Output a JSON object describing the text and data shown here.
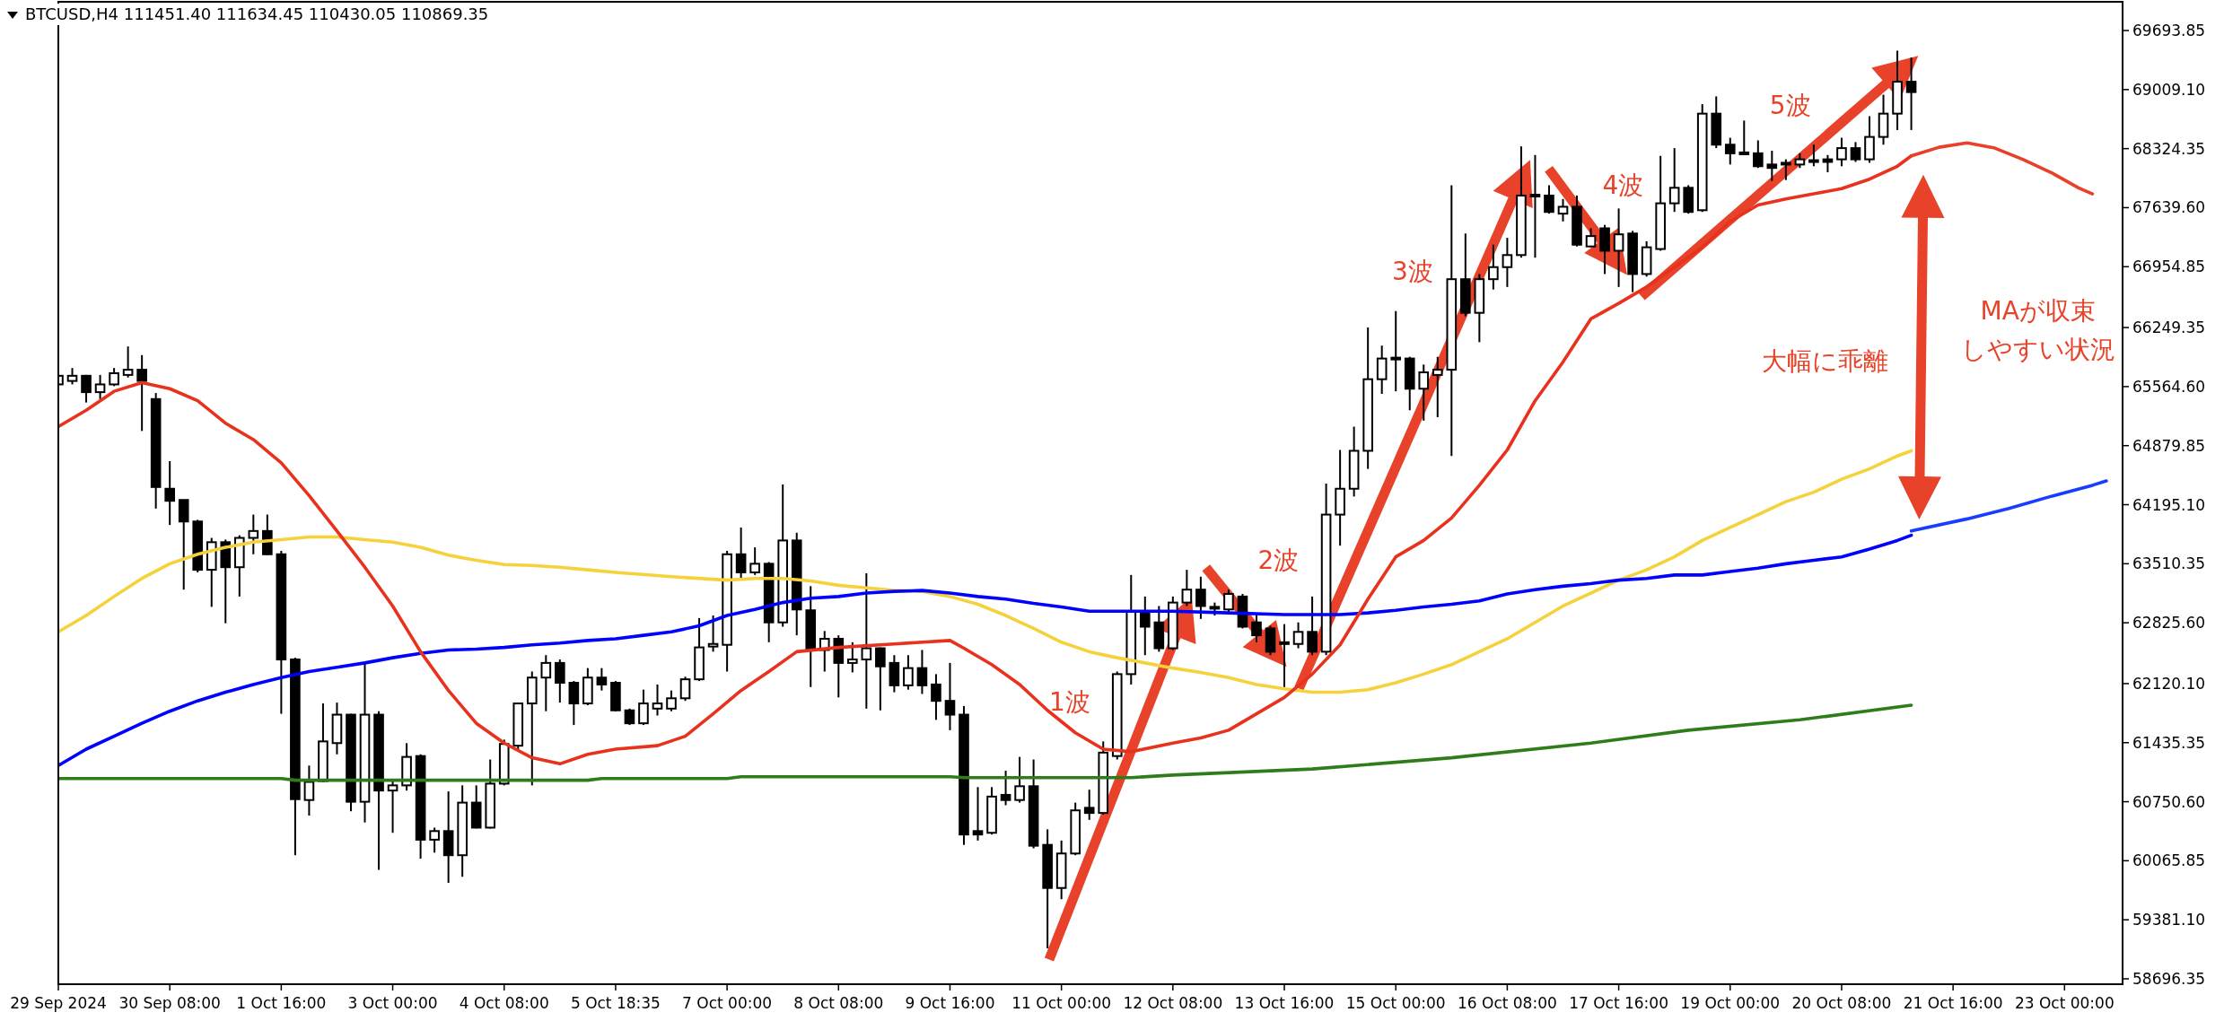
{
  "chart_data": {
    "type": "candlestick",
    "title": "BTCUSD,H4  111451.40 111634.45 110430.05 110869.35",
    "x": [
      "2024-09-29T00:00",
      "2024-09-29T04:00",
      "2024-09-29T08:00",
      "2024-09-29T12:00",
      "2024-09-29T16:00",
      "2024-09-29T20:00",
      "2024-09-30T00:00",
      "2024-09-30T04:00",
      "2024-09-30T08:00",
      "2024-09-30T12:00",
      "2024-09-30T16:00",
      "2024-09-30T20:00",
      "2024-10-01T00:00",
      "2024-10-01T04:00",
      "2024-10-01T08:00",
      "2024-10-01T12:00",
      "2024-10-01T16:00",
      "2024-10-01T20:00",
      "2024-10-02T00:00",
      "2024-10-02T04:00",
      "2024-10-02T08:00",
      "2024-10-02T12:00",
      "2024-10-02T16:00",
      "2024-10-02T20:00",
      "2024-10-03T00:00",
      "2024-10-03T04:00",
      "2024-10-03T08:00",
      "2024-10-03T12:00",
      "2024-10-03T16:00",
      "2024-10-03T20:00",
      "2024-10-04T00:00",
      "2024-10-04T04:00",
      "2024-10-04T08:00",
      "2024-10-04T12:00",
      "2024-10-04T16:00",
      "2024-10-04T20:00",
      "2024-10-05T00:00",
      "2024-10-05T04:00",
      "2024-10-05T08:00",
      "2024-10-05T12:00",
      "2024-10-05T16:00",
      "2024-10-05T20:00",
      "2024-10-06T00:00",
      "2024-10-06T04:00",
      "2024-10-06T08:00",
      "2024-10-06T12:00",
      "2024-10-06T16:00",
      "2024-10-06T20:00",
      "2024-10-07T00:00",
      "2024-10-07T04:00",
      "2024-10-07T08:00",
      "2024-10-07T12:00",
      "2024-10-07T16:00",
      "2024-10-07T20:00",
      "2024-10-08T00:00",
      "2024-10-08T04:00",
      "2024-10-08T08:00",
      "2024-10-08T12:00",
      "2024-10-08T16:00",
      "2024-10-08T20:00",
      "2024-10-09T00:00",
      "2024-10-09T04:00",
      "2024-10-09T08:00",
      "2024-10-09T12:00",
      "2024-10-09T16:00",
      "2024-10-09T20:00",
      "2024-10-10T00:00",
      "2024-10-10T04:00",
      "2024-10-10T08:00",
      "2024-10-10T12:00",
      "2024-10-10T16:00",
      "2024-10-10T20:00",
      "2024-10-11T00:00",
      "2024-10-11T04:00",
      "2024-10-11T08:00",
      "2024-10-11T12:00",
      "2024-10-11T16:00",
      "2024-10-11T20:00",
      "2024-10-12T00:00",
      "2024-10-12T04:00",
      "2024-10-12T08:00",
      "2024-10-12T12:00",
      "2024-10-12T16:00",
      "2024-10-12T20:00",
      "2024-10-13T00:00",
      "2024-10-13T04:00",
      "2024-10-13T08:00",
      "2024-10-13T12:00",
      "2024-10-13T16:00",
      "2024-10-13T20:00",
      "2024-10-14T00:00",
      "2024-10-14T04:00",
      "2024-10-14T08:00",
      "2024-10-14T12:00",
      "2024-10-14T16:00",
      "2024-10-14T20:00",
      "2024-10-15T00:00",
      "2024-10-15T04:00",
      "2024-10-15T08:00",
      "2024-10-15T12:00",
      "2024-10-15T16:00",
      "2024-10-15T20:00",
      "2024-10-16T00:00",
      "2024-10-16T04:00",
      "2024-10-16T08:00",
      "2024-10-16T12:00",
      "2024-10-16T16:00",
      "2024-10-16T20:00",
      "2024-10-17T00:00",
      "2024-10-17T04:00",
      "2024-10-17T08:00",
      "2024-10-17T12:00",
      "2024-10-17T16:00",
      "2024-10-17T20:00",
      "2024-10-18T00:00",
      "2024-10-18T04:00",
      "2024-10-18T08:00",
      "2024-10-18T12:00",
      "2024-10-18T16:00",
      "2024-10-18T20:00",
      "2024-10-19T00:00",
      "2024-10-19T04:00",
      "2024-10-19T08:00",
      "2024-10-19T12:00",
      "2024-10-19T16:00",
      "2024-10-19T20:00",
      "2024-10-20T00:00",
      "2024-10-20T04:00",
      "2024-10-20T08:00",
      "2024-10-20T12:00",
      "2024-10-20T16:00",
      "2024-10-20T20:00",
      "2024-10-21T00:00",
      "2024-10-21T04:00"
    ],
    "ohlc": [
      [
        65590,
        65930,
        65510,
        65690
      ],
      [
        65630,
        65780,
        65590,
        65690
      ],
      [
        65690,
        65700,
        65380,
        65500
      ],
      [
        65500,
        65700,
        65420,
        65590
      ],
      [
        65590,
        65780,
        65570,
        65720
      ],
      [
        65700,
        66030,
        65670,
        65760
      ],
      [
        65760,
        65930,
        65050,
        65630
      ],
      [
        65420,
        65490,
        64150,
        64400
      ],
      [
        64380,
        64700,
        63960,
        64240
      ],
      [
        64250,
        64250,
        63210,
        64000
      ],
      [
        64000,
        64020,
        63410,
        63440
      ],
      [
        63440,
        63810,
        63010,
        63760
      ],
      [
        63760,
        63790,
        62820,
        63470
      ],
      [
        63470,
        63840,
        63130,
        63810
      ],
      [
        63810,
        64080,
        63620,
        63890
      ],
      [
        63890,
        64080,
        63610,
        63620
      ],
      [
        63620,
        63660,
        61770,
        62400
      ],
      [
        62400,
        62420,
        60130,
        60780
      ],
      [
        60770,
        61170,
        60590,
        60980
      ],
      [
        60990,
        61890,
        60980,
        61450
      ],
      [
        61430,
        61900,
        61300,
        61760
      ],
      [
        61760,
        61770,
        60640,
        60750
      ],
      [
        60750,
        62360,
        60510,
        61760
      ],
      [
        61760,
        61800,
        59960,
        60880
      ],
      [
        60880,
        60990,
        60390,
        60940
      ],
      [
        60940,
        61430,
        60880,
        61270
      ],
      [
        61280,
        61300,
        60090,
        60310
      ],
      [
        60310,
        60450,
        60160,
        60410
      ],
      [
        60410,
        60870,
        59810,
        60130
      ],
      [
        60130,
        60940,
        59880,
        60740
      ],
      [
        60740,
        60940,
        60440,
        60450
      ],
      [
        60450,
        61240,
        60440,
        60960
      ],
      [
        60960,
        61470,
        60940,
        61420
      ],
      [
        61400,
        61900,
        61360,
        61890
      ],
      [
        61890,
        62260,
        60940,
        62190
      ],
      [
        62190,
        62450,
        61800,
        62360
      ],
      [
        62360,
        62400,
        61900,
        62130
      ],
      [
        62130,
        62150,
        61640,
        61890
      ],
      [
        61890,
        62300,
        61870,
        62190
      ],
      [
        62190,
        62300,
        62040,
        62110
      ],
      [
        62130,
        62150,
        61800,
        61810
      ],
      [
        61810,
        61830,
        61640,
        61660
      ],
      [
        61660,
        62050,
        61640,
        61890
      ],
      [
        61830,
        62110,
        61750,
        61890
      ],
      [
        61830,
        62040,
        61800,
        61950
      ],
      [
        61950,
        62200,
        61920,
        62170
      ],
      [
        62170,
        62880,
        62150,
        62540
      ],
      [
        62550,
        62910,
        62490,
        62580
      ],
      [
        62570,
        63660,
        62260,
        63620
      ],
      [
        63620,
        63930,
        63320,
        63410
      ],
      [
        63410,
        63700,
        63380,
        63510
      ],
      [
        63510,
        63530,
        62600,
        62830
      ],
      [
        62830,
        64430,
        62780,
        63780
      ],
      [
        63780,
        63870,
        62680,
        62980
      ],
      [
        62970,
        63250,
        62080,
        62510
      ],
      [
        62510,
        62730,
        62260,
        62640
      ],
      [
        62640,
        62680,
        61960,
        62360
      ],
      [
        62360,
        62600,
        62250,
        62400
      ],
      [
        62400,
        63400,
        61830,
        62530
      ],
      [
        62530,
        62540,
        61810,
        62320
      ],
      [
        62360,
        62450,
        62020,
        62100
      ],
      [
        62100,
        62450,
        62050,
        62300
      ],
      [
        62300,
        62510,
        62000,
        62100
      ],
      [
        62110,
        62230,
        61700,
        61920
      ],
      [
        61920,
        62360,
        61580,
        61760
      ],
      [
        61760,
        61860,
        60250,
        60370
      ],
      [
        60410,
        60920,
        60300,
        60370
      ],
      [
        60390,
        60920,
        60370,
        60810
      ],
      [
        60830,
        61110,
        60710,
        60770
      ],
      [
        60770,
        61270,
        60740,
        60930
      ],
      [
        60930,
        61240,
        60210,
        60240
      ],
      [
        60250,
        60430,
        59050,
        59750
      ],
      [
        59750,
        60300,
        59620,
        60150
      ],
      [
        60150,
        60740,
        60130,
        60650
      ],
      [
        60680,
        60890,
        60540,
        60620
      ],
      [
        60620,
        61450,
        60600,
        61320
      ],
      [
        61280,
        62260,
        61240,
        62230
      ],
      [
        62230,
        63380,
        62110,
        62960
      ],
      [
        62940,
        63130,
        62450,
        62780
      ],
      [
        62830,
        63020,
        62490,
        62530
      ],
      [
        62530,
        63130,
        62510,
        63060
      ],
      [
        63060,
        63440,
        63020,
        63210
      ],
      [
        63210,
        63360,
        62870,
        63020
      ],
      [
        62990,
        63060,
        62910,
        63010
      ],
      [
        62980,
        63210,
        62940,
        63160
      ],
      [
        63130,
        63160,
        62760,
        62780
      ],
      [
        62830,
        62940,
        62600,
        62680
      ],
      [
        62760,
        62790,
        62450,
        62490
      ],
      [
        62600,
        62810,
        62080,
        62580
      ],
      [
        62580,
        62830,
        62530,
        62720
      ],
      [
        62720,
        63130,
        62450,
        62490
      ],
      [
        62490,
        64440,
        62450,
        64080
      ],
      [
        64080,
        64830,
        63720,
        64380
      ],
      [
        64380,
        65100,
        64290,
        64820
      ],
      [
        64820,
        66250,
        64610,
        65650
      ],
      [
        65650,
        66040,
        65480,
        65890
      ],
      [
        65880,
        66440,
        65510,
        65900
      ],
      [
        65890,
        65910,
        65290,
        65540
      ],
      [
        65540,
        65820,
        65170,
        65730
      ],
      [
        65700,
        65910,
        65210,
        65760
      ],
      [
        65760,
        67900,
        64760,
        66810
      ],
      [
        66810,
        67340,
        66380,
        66420
      ],
      [
        66420,
        66870,
        66080,
        66810
      ],
      [
        66810,
        67210,
        66690,
        66950
      ],
      [
        66950,
        67290,
        66720,
        67090
      ],
      [
        67090,
        68350,
        67060,
        67780
      ],
      [
        67770,
        68250,
        67060,
        67790
      ],
      [
        67780,
        67900,
        67570,
        67590
      ],
      [
        67570,
        67740,
        67480,
        67650
      ],
      [
        67650,
        67780,
        67190,
        67210
      ],
      [
        67190,
        67400,
        67180,
        67310
      ],
      [
        67400,
        67440,
        66870,
        67140
      ],
      [
        67140,
        67630,
        66720,
        67330
      ],
      [
        67340,
        67370,
        66660,
        66870
      ],
      [
        66870,
        67250,
        66840,
        67180
      ],
      [
        67160,
        68240,
        67140,
        67690
      ],
      [
        67690,
        68330,
        67590,
        67870
      ],
      [
        67870,
        67900,
        67570,
        67590
      ],
      [
        67610,
        68840,
        67590,
        68730
      ],
      [
        68730,
        68930,
        68330,
        68370
      ],
      [
        68370,
        68450,
        68140,
        68270
      ],
      [
        68270,
        68650,
        68260,
        68280
      ],
      [
        68270,
        68420,
        68100,
        68120
      ],
      [
        68140,
        68300,
        67950,
        68100
      ],
      [
        68140,
        68200,
        67960,
        68160
      ],
      [
        68140,
        68270,
        68100,
        68200
      ],
      [
        68170,
        68370,
        68120,
        68190
      ],
      [
        68200,
        68250,
        68050,
        68170
      ],
      [
        68200,
        68450,
        68120,
        68330
      ],
      [
        68330,
        68400,
        68170,
        68200
      ],
      [
        68200,
        68700,
        68160,
        68460
      ],
      [
        68460,
        68950,
        68370,
        68730
      ],
      [
        68730,
        69460,
        68540,
        69100
      ],
      [
        69100,
        69380,
        68540,
        68980
      ]
    ],
    "series": [
      {
        "type": "line",
        "color": "#2e7d1a",
        "x": [
          "2024-09-29T00:00",
          "2024-10-01T16:00",
          "2024-10-01T20:00",
          "2024-10-05T08:00",
          "2024-10-05T12:00",
          "2024-10-07T00:00",
          "2024-10-07T04:00",
          "2024-10-09T16:00",
          "2024-10-09T20:00",
          "2024-10-11T20:00",
          "2024-10-12T08:00",
          "2024-10-14T00:00",
          "2024-10-15T16:00",
          "2024-10-17T08:00",
          "2024-10-18T12:00",
          "2024-10-19T20:00",
          "2024-10-21T04:00"
        ],
        "values": [
          61020,
          61020,
          61000,
          61000,
          61020,
          61020,
          61040,
          61040,
          61030,
          61030,
          61060,
          61130,
          61260,
          61430,
          61580,
          61700,
          61870
        ]
      },
      {
        "type": "line",
        "color": "#f5d23c",
        "x": [
          "2024-09-29T00:00",
          "2024-09-29T08:00",
          "2024-09-29T16:00",
          "2024-09-30T00:00",
          "2024-09-30T08:00",
          "2024-09-30T16:00",
          "2024-10-01T00:00",
          "2024-10-01T08:00",
          "2024-10-01T16:00",
          "2024-10-02T00:00",
          "2024-10-02T08:00",
          "2024-10-02T16:00",
          "2024-10-03T00:00",
          "2024-10-03T08:00",
          "2024-10-03T16:00",
          "2024-10-04T00:00",
          "2024-10-04T08:00",
          "2024-10-04T16:00",
          "2024-10-05T00:00",
          "2024-10-05T08:00",
          "2024-10-05T16:00",
          "2024-10-06T08:00",
          "2024-10-07T00:00",
          "2024-10-07T08:00",
          "2024-10-07T16:00",
          "2024-10-08T00:00",
          "2024-10-08T08:00",
          "2024-10-08T16:00",
          "2024-10-09T00:00",
          "2024-10-09T08:00",
          "2024-10-09T16:00",
          "2024-10-10T00:00",
          "2024-10-10T08:00",
          "2024-10-10T16:00",
          "2024-10-11T00:00",
          "2024-10-11T08:00",
          "2024-10-11T16:00",
          "2024-10-12T00:00",
          "2024-10-12T08:00",
          "2024-10-12T16:00",
          "2024-10-13T00:00",
          "2024-10-13T08:00",
          "2024-10-13T16:00",
          "2024-10-14T00:00",
          "2024-10-14T08:00",
          "2024-10-14T16:00",
          "2024-10-15T00:00",
          "2024-10-15T08:00",
          "2024-10-15T16:00",
          "2024-10-16T00:00",
          "2024-10-16T08:00",
          "2024-10-16T16:00",
          "2024-10-17T00:00",
          "2024-10-17T08:00",
          "2024-10-17T16:00",
          "2024-10-18T00:00",
          "2024-10-18T08:00",
          "2024-10-18T16:00",
          "2024-10-19T00:00",
          "2024-10-19T08:00",
          "2024-10-19T16:00",
          "2024-10-20T00:00",
          "2024-10-20T08:00",
          "2024-10-20T16:00",
          "2024-10-21T00:00",
          "2024-10-21T04:00"
        ],
        "values": [
          62720,
          62910,
          63130,
          63340,
          63510,
          63620,
          63700,
          63760,
          63790,
          63820,
          63820,
          63790,
          63760,
          63700,
          63610,
          63550,
          63500,
          63490,
          63470,
          63440,
          63410,
          63360,
          63320,
          63340,
          63340,
          63310,
          63260,
          63230,
          63200,
          63190,
          63130,
          63040,
          62910,
          62760,
          62600,
          62490,
          62420,
          62360,
          62300,
          62250,
          62190,
          62110,
          62060,
          62020,
          62020,
          62050,
          62130,
          62230,
          62340,
          62490,
          62640,
          62830,
          63020,
          63170,
          63320,
          63440,
          63590,
          63780,
          63930,
          64080,
          64230,
          64340,
          64490,
          64610,
          64760,
          64820
        ]
      },
      {
        "type": "line",
        "color": "#0000ff",
        "x": [
          "2024-09-29T00:00",
          "2024-09-29T08:00",
          "2024-09-29T16:00",
          "2024-09-30T00:00",
          "2024-09-30T08:00",
          "2024-09-30T16:00",
          "2024-10-01T00:00",
          "2024-10-01T08:00",
          "2024-10-01T16:00",
          "2024-10-02T00:00",
          "2024-10-02T08:00",
          "2024-10-02T16:00",
          "2024-10-03T00:00",
          "2024-10-03T08:00",
          "2024-10-03T16:00",
          "2024-10-04T00:00",
          "2024-10-04T08:00",
          "2024-10-04T16:00",
          "2024-10-05T00:00",
          "2024-10-05T08:00",
          "2024-10-05T16:00",
          "2024-10-06T00:00",
          "2024-10-06T08:00",
          "2024-10-06T16:00",
          "2024-10-07T00:00",
          "2024-10-07T08:00",
          "2024-10-07T16:00",
          "2024-10-08T00:00",
          "2024-10-08T08:00",
          "2024-10-08T16:00",
          "2024-10-09T00:00",
          "2024-10-09T08:00",
          "2024-10-09T16:00",
          "2024-10-10T00:00",
          "2024-10-10T08:00",
          "2024-10-10T16:00",
          "2024-10-11T00:00",
          "2024-10-11T08:00",
          "2024-10-11T16:00",
          "2024-10-12T08:00",
          "2024-10-13T00:00",
          "2024-10-13T16:00",
          "2024-10-14T00:00",
          "2024-10-14T08:00",
          "2024-10-14T16:00",
          "2024-10-15T00:00",
          "2024-10-15T08:00",
          "2024-10-15T16:00",
          "2024-10-16T00:00",
          "2024-10-16T08:00",
          "2024-10-16T16:00",
          "2024-10-17T00:00",
          "2024-10-17T08:00",
          "2024-10-17T16:00",
          "2024-10-18T00:00",
          "2024-10-18T08:00",
          "2024-10-18T16:00",
          "2024-10-19T00:00",
          "2024-10-19T08:00",
          "2024-10-19T16:00",
          "2024-10-20T00:00",
          "2024-10-20T08:00",
          "2024-10-20T16:00",
          "2024-10-21T00:00",
          "2024-10-21T04:00"
        ],
        "values": [
          61170,
          61360,
          61510,
          61660,
          61800,
          61920,
          62020,
          62110,
          62190,
          62260,
          62310,
          62360,
          62420,
          62470,
          62510,
          62520,
          62540,
          62570,
          62590,
          62620,
          62640,
          62680,
          62720,
          62790,
          62910,
          62980,
          63060,
          63110,
          63130,
          63170,
          63190,
          63200,
          63170,
          63130,
          63100,
          63050,
          63010,
          62960,
          62960,
          62960,
          62940,
          62920,
          62920,
          62920,
          62940,
          62970,
          63010,
          63040,
          63080,
          63160,
          63210,
          63250,
          63280,
          63320,
          63340,
          63380,
          63380,
          63420,
          63460,
          63510,
          63550,
          63590,
          63680,
          63780,
          63840
        ]
      },
      {
        "type": "line",
        "color": "#1a3cff",
        "x": [
          "2024-10-21T04:00",
          "2024-10-21T20:00",
          "2024-10-22T08:00",
          "2024-10-22T20:00",
          "2024-10-23T08:00",
          "2024-10-23T12:00"
        ],
        "values": [
          63890,
          64030,
          64150,
          64290,
          64420,
          64470
        ]
      },
      {
        "type": "line",
        "color": "#e8321e",
        "x": [
          "2024-09-29T00:00",
          "2024-09-29T08:00",
          "2024-09-29T16:00",
          "2024-09-30T00:00",
          "2024-09-30T08:00",
          "2024-09-30T16:00",
          "2024-10-01T00:00",
          "2024-10-01T08:00",
          "2024-10-01T16:00",
          "2024-10-02T00:00",
          "2024-10-02T08:00",
          "2024-10-02T16:00",
          "2024-10-03T00:00",
          "2024-10-03T08:00",
          "2024-10-03T16:00",
          "2024-10-04T00:00",
          "2024-10-04T08:00",
          "2024-10-04T16:00",
          "2024-10-05T00:00",
          "2024-10-05T08:00",
          "2024-10-05T16:00",
          "2024-10-06T04:00",
          "2024-10-06T12:00",
          "2024-10-06T20:00",
          "2024-10-07T04:00",
          "2024-10-07T12:00",
          "2024-10-07T20:00",
          "2024-10-08T08:00",
          "2024-10-09T00:00",
          "2024-10-09T16:00",
          "2024-10-09T20:00",
          "2024-10-10T04:00",
          "2024-10-10T12:00",
          "2024-10-10T20:00",
          "2024-10-11T04:00",
          "2024-10-11T12:00",
          "2024-10-11T20:00",
          "2024-10-12T08:00",
          "2024-10-12T16:00",
          "2024-10-13T00:00",
          "2024-10-13T08:00",
          "2024-10-13T16:00",
          "2024-10-14T00:00",
          "2024-10-14T08:00",
          "2024-10-14T16:00",
          "2024-10-15T00:00",
          "2024-10-15T08:00",
          "2024-10-15T16:00",
          "2024-10-16T00:00",
          "2024-10-16T08:00",
          "2024-10-16T16:00",
          "2024-10-17T00:00",
          "2024-10-17T08:00",
          "2024-10-17T16:00",
          "2024-10-18T00:00",
          "2024-10-18T08:00",
          "2024-10-18T16:00",
          "2024-10-19T00:00",
          "2024-10-19T08:00",
          "2024-10-19T16:00",
          "2024-10-20T00:00",
          "2024-10-20T08:00",
          "2024-10-20T16:00",
          "2024-10-21T00:00",
          "2024-10-21T04:00"
        ],
        "values": [
          65100,
          65290,
          65510,
          65610,
          65540,
          65400,
          65140,
          64950,
          64680,
          64300,
          63890,
          63470,
          63020,
          62490,
          62040,
          61660,
          61430,
          61260,
          61190,
          61300,
          61360,
          61400,
          61510,
          61770,
          62040,
          62260,
          62490,
          62540,
          62580,
          62620,
          62530,
          62340,
          62110,
          61810,
          61550,
          61360,
          61330,
          61430,
          61490,
          61580,
          61770,
          61960,
          62230,
          62570,
          63100,
          63590,
          63780,
          64040,
          64420,
          64830,
          65400,
          65850,
          66350,
          66530,
          66720,
          66950,
          67180,
          67480,
          67670,
          67740,
          67800,
          67860,
          67970,
          68120,
          68240
        ]
      },
      {
        "type": "line",
        "color": "#e8402a",
        "x": [
          "2024-10-21T04:00",
          "2024-10-21T12:00",
          "2024-10-21T20:00",
          "2024-10-22T04:00",
          "2024-10-22T12:00",
          "2024-10-22T20:00",
          "2024-10-23T04:00",
          "2024-10-23T08:00"
        ],
        "values": [
          68240,
          68340,
          68390,
          68330,
          68200,
          68050,
          67870,
          67800
        ]
      }
    ],
    "xlim": [
      "2024-09-29T00:00",
      "2024-10-23T16:40"
    ],
    "ylim": [
      58634,
      70027
    ],
    "xticks": [
      {
        "value": "2024-09-29T00:00",
        "label": "29 Sep 2024"
      },
      {
        "value": "2024-09-30T08:00",
        "label": "30 Sep 08:00"
      },
      {
        "value": "2024-10-01T16:00",
        "label": "1 Oct 16:00"
      },
      {
        "value": "2024-10-03T00:00",
        "label": "3 Oct 00:00"
      },
      {
        "value": "2024-10-04T08:00",
        "label": "4 Oct 08:00"
      },
      {
        "value": "2024-10-05T16:00",
        "label": "5 Oct 18:35"
      },
      {
        "value": "2024-10-07T00:00",
        "label": "7 Oct 00:00"
      },
      {
        "value": "2024-10-08T08:00",
        "label": "8 Oct 08:00"
      },
      {
        "value": "2024-10-09T16:00",
        "label": "9 Oct 16:00"
      },
      {
        "value": "2024-10-11T00:00",
        "label": "11 Oct 00:00"
      },
      {
        "value": "2024-10-12T08:00",
        "label": "12 Oct 08:00"
      },
      {
        "value": "2024-10-13T16:00",
        "label": "13 Oct 16:00"
      },
      {
        "value": "2024-10-15T00:00",
        "label": "15 Oct 00:00"
      },
      {
        "value": "2024-10-16T08:00",
        "label": "16 Oct 08:00"
      },
      {
        "value": "2024-10-17T16:00",
        "label": "17 Oct 16:00"
      },
      {
        "value": "2024-10-19T00:00",
        "label": "19 Oct 00:00"
      },
      {
        "value": "2024-10-20T08:00",
        "label": "20 Oct 08:00"
      },
      {
        "value": "2024-10-21T16:00",
        "label": "21 Oct 16:00"
      },
      {
        "value": "2024-10-23T00:00",
        "label": "23 Oct 00:00"
      }
    ],
    "yticks": [
      {
        "value": 58696.35,
        "label": "58696.35"
      },
      {
        "value": 59381.1,
        "label": "59381.10"
      },
      {
        "value": 60065.85,
        "label": "60065.85"
      },
      {
        "value": 60750.6,
        "label": "60750.60"
      },
      {
        "value": 61435.35,
        "label": "61435.35"
      },
      {
        "value": 62120.1,
        "label": "62120.10"
      },
      {
        "value": 62825.6,
        "label": "62825.60"
      },
      {
        "value": 63510.35,
        "label": "63510.35"
      },
      {
        "value": 64195.1,
        "label": "64195.10"
      },
      {
        "value": 64879.85,
        "label": "64879.85"
      },
      {
        "value": 65564.6,
        "label": "65564.60"
      },
      {
        "value": 66249.35,
        "label": "66249.35"
      },
      {
        "value": 66954.85,
        "label": "66954.85"
      },
      {
        "value": 67639.6,
        "label": "67639.60"
      },
      {
        "value": 68324.35,
        "label": "68324.35"
      },
      {
        "value": 69009.1,
        "label": "69009.10"
      },
      {
        "value": 69693.85,
        "label": "69693.85"
      }
    ],
    "annotations": [
      "1波",
      "2波",
      "3波",
      "4波",
      "5波",
      "大幅に乖離",
      "MAが収束",
      "しやすい状況"
    ]
  }
}
